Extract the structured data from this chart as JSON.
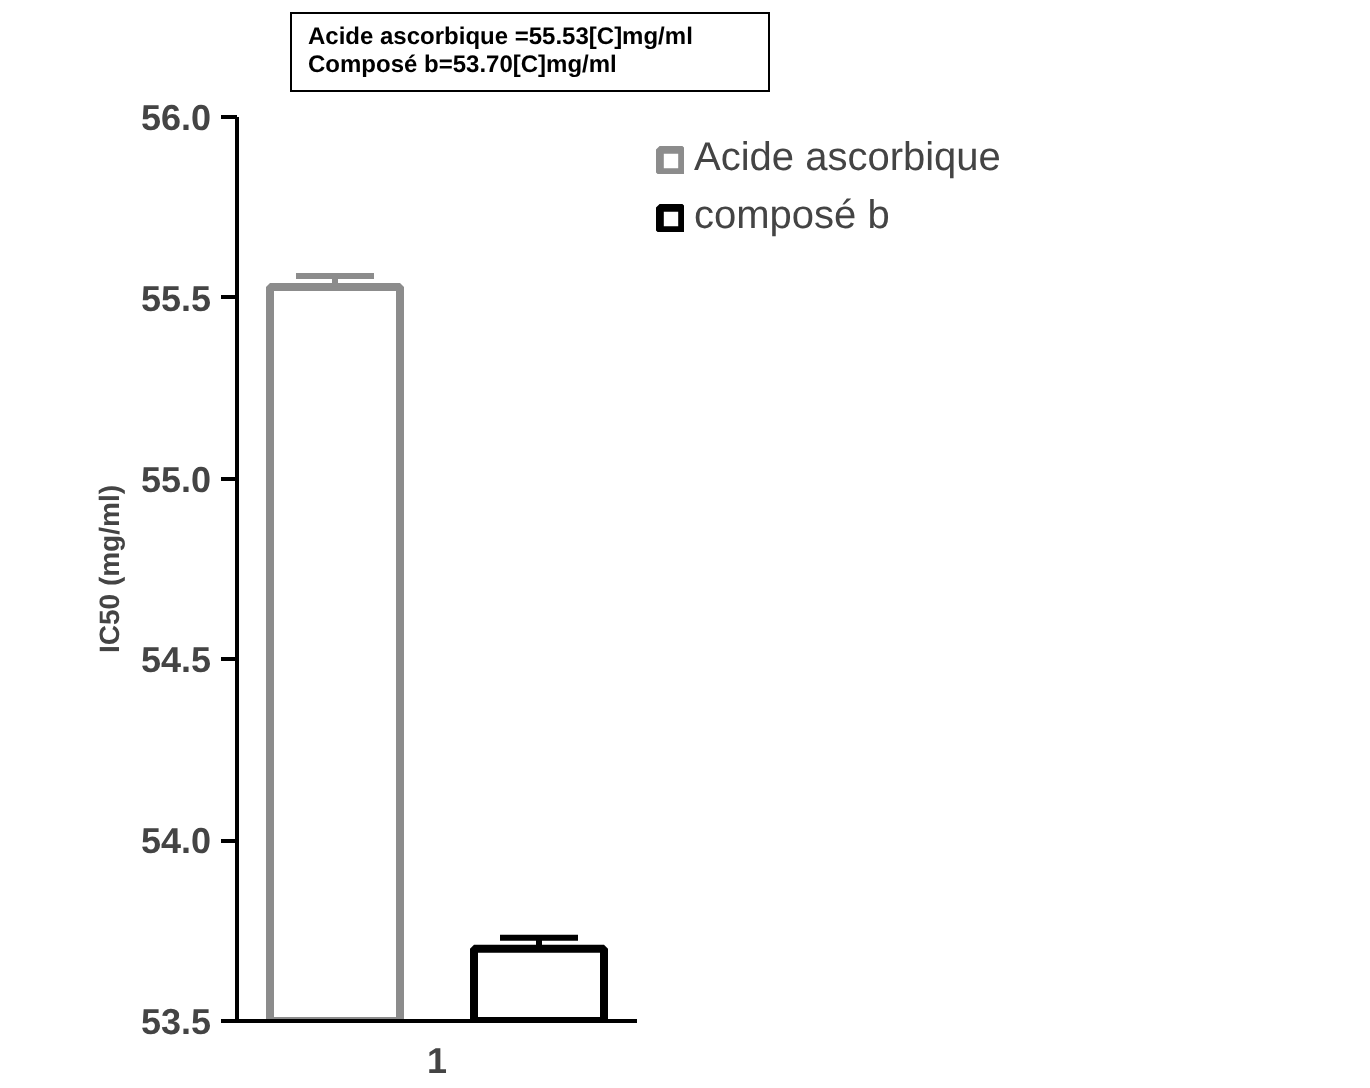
{
  "chart_data": {
    "type": "bar",
    "categories": [
      "1"
    ],
    "ylabel": "IC50 (mg/ml)",
    "series": [
      {
        "name": "Acide ascorbique",
        "color": "#8c8c8c",
        "values": [
          55.53
        ],
        "errors": [
          [
            55.53,
            55.56
          ]
        ]
      },
      {
        "name": "composé b",
        "color": "#000000",
        "values": [
          53.7
        ],
        "errors": [
          [
            53.7,
            53.73
          ]
        ]
      }
    ],
    "ylim": [
      53.5,
      56.0
    ],
    "yticks": [
      {
        "value": 53.5,
        "label": "53.5"
      },
      {
        "value": 54.0,
        "label": "54.0"
      },
      {
        "value": 54.5,
        "label": "54.5"
      },
      {
        "value": 55.0,
        "label": "55.0"
      },
      {
        "value": 55.5,
        "label": "55.5"
      },
      {
        "value": 56.0,
        "label": "56.0"
      }
    ],
    "annotations": [
      "Acide ascorbique =55.53[C]mg/ml\nComposé b=53.70[C]mg/ml"
    ],
    "legend": "right",
    "grid": false
  }
}
